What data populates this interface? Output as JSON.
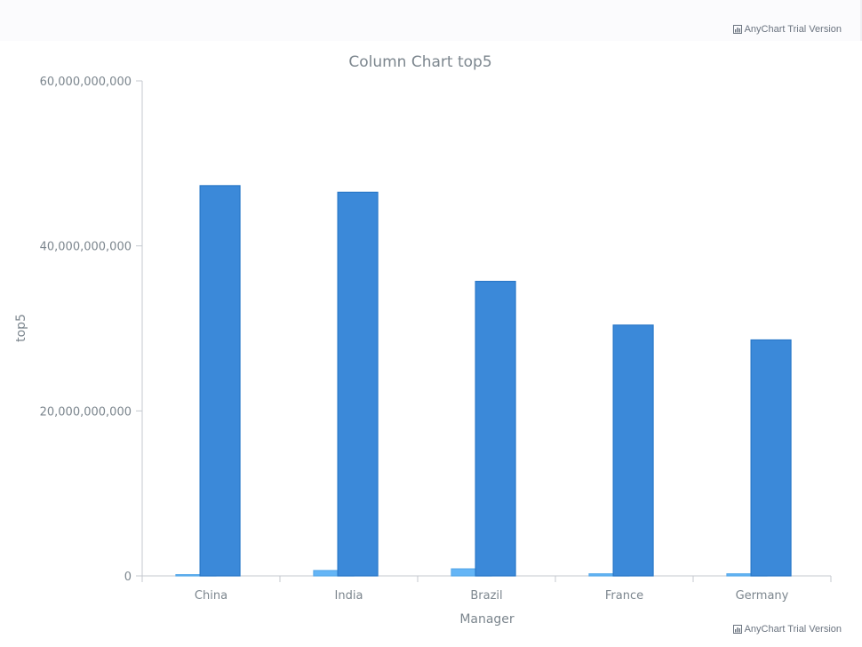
{
  "credit": {
    "text": "AnyChart Trial Version",
    "icon": "chart-logo-icon"
  },
  "chart_data": {
    "type": "bar",
    "title": "Column Chart top5",
    "xlabel": "Manager",
    "ylabel": "top5",
    "categories": [
      "China",
      "India",
      "Brazil",
      "France",
      "Germany"
    ],
    "series": [
      {
        "values": [
          150000000,
          650000000,
          850000000,
          250000000,
          250000000
        ],
        "color": "#64b5f6"
      },
      {
        "values": [
          47300000000,
          46500000000,
          35700000000,
          30400000000,
          28600000000
        ],
        "color": "#3b89d9"
      }
    ],
    "ylim": [
      0,
      60000000000
    ],
    "yticks": [
      0,
      20000000000,
      40000000000,
      60000000000
    ],
    "ytick_labels": [
      "0",
      "20,000,000,000",
      "40,000,000,000",
      "60,000,000,000"
    ],
    "grid": false,
    "legend": "none"
  }
}
